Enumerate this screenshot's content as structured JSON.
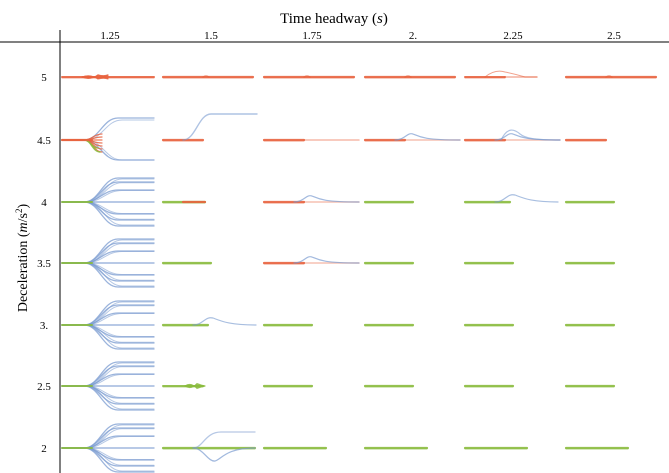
{
  "chart_data": {
    "type": "line",
    "title": "Time headway (s)",
    "xlabel": "Time headway (s)",
    "ylabel": "Deceleration (m/s2)",
    "columns": [
      "1.25",
      "1.5",
      "1.75",
      "2.",
      "2.25",
      "2.5"
    ],
    "rows": [
      "5",
      "4.5",
      "4",
      "3.5",
      "3.",
      "2.5",
      "2"
    ],
    "legend": [
      {
        "name": "red",
        "color": "#e8633f"
      },
      {
        "name": "green",
        "color": "#8bbb3e"
      },
      {
        "name": "blue",
        "color": "#7a9bd0"
      }
    ],
    "cells": {
      "5": [
        "red-tangle",
        "red-flat",
        "red-flat",
        "red-flat",
        "red-bump-small",
        "red-flat"
      ],
      "4.5": [
        "mixed-fan",
        "blue-step-up",
        "red-fade",
        "red-blue-bump",
        "red-blue-bump",
        "red-flat"
      ],
      "4": [
        "blue-fan",
        "green-red-flat",
        "red-blue-bump",
        "green-flat",
        "green-blue-bump",
        "green-flat"
      ],
      "3.5": [
        "blue-fan",
        "green-flat",
        "red-blue-bump",
        "green-flat",
        "green-flat",
        "green-flat"
      ],
      "3.": [
        "blue-fan",
        "green-blue-bump",
        "green-flat",
        "green-flat",
        "green-flat",
        "green-flat"
      ],
      "2.5": [
        "blue-fan",
        "green-tangle",
        "green-flat",
        "green-flat",
        "green-flat",
        "green-flat"
      ],
      "2": [
        "blue-fan",
        "blue-split",
        "green-flat",
        "green-flat",
        "green-flat",
        "green-flat"
      ]
    }
  }
}
